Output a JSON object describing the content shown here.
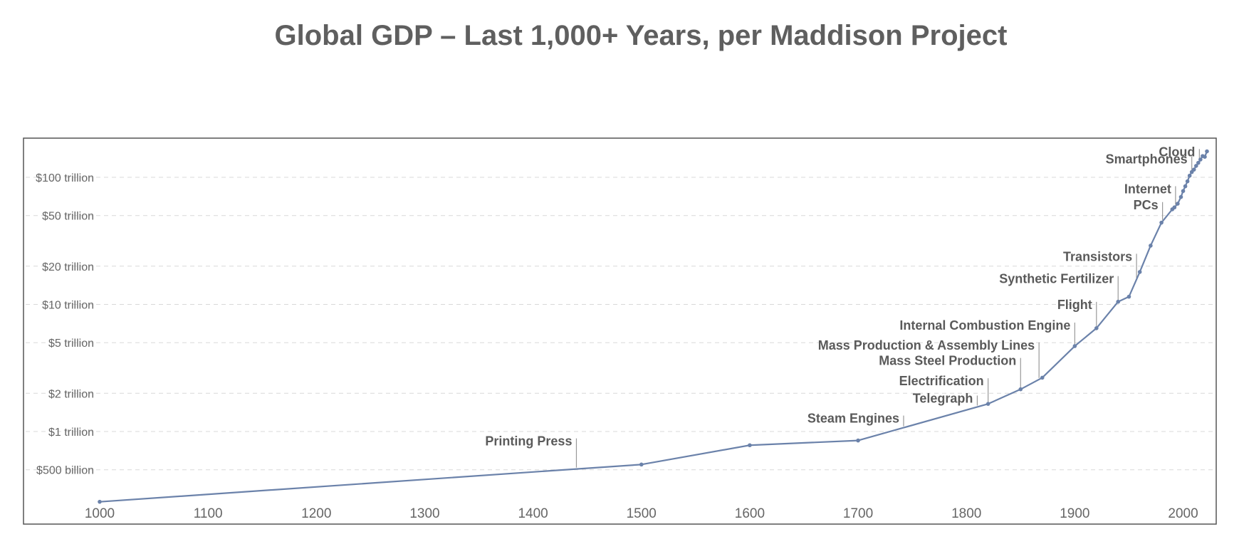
{
  "chart_data": {
    "type": "line",
    "title": "Global GDP – Last 1,000+ Years, per Maddison Project",
    "xlabel": "",
    "ylabel": "",
    "x_scale": "linear",
    "y_scale": "log",
    "xlim": [
      1000,
      2022
    ],
    "ylim": [
      0.27,
      170
    ],
    "grid": true,
    "legend": "none",
    "x_ticks": [
      1000,
      1100,
      1200,
      1300,
      1400,
      1500,
      1600,
      1700,
      1800,
      1900,
      2000
    ],
    "y_ticks": [
      {
        "value": 0.5,
        "label": "$500 billion"
      },
      {
        "value": 1,
        "label": "$1 trillion"
      },
      {
        "value": 2,
        "label": "$2 trillion"
      },
      {
        "value": 5,
        "label": "$5 trillion"
      },
      {
        "value": 10,
        "label": "$10 trillion"
      },
      {
        "value": 20,
        "label": "$20 trillion"
      },
      {
        "value": 50,
        "label": "$50 trillion"
      },
      {
        "value": 100,
        "label": "$100 trillion"
      }
    ],
    "series": [
      {
        "color": "#6b82aa",
        "x": [
          1000,
          1500,
          1600,
          1700,
          1820,
          1850,
          1870,
          1900,
          1920,
          1940,
          1950,
          1960,
          1970,
          1980,
          1990,
          1992,
          1995,
          1998,
          2000,
          2002,
          2004,
          2006,
          2008,
          2010,
          2012,
          2014,
          2016,
          2018,
          2020,
          2022
        ],
        "y": [
          0.28,
          0.55,
          0.78,
          0.85,
          1.65,
          2.15,
          2.65,
          4.7,
          6.5,
          10.5,
          11.5,
          18.0,
          29.0,
          44.0,
          56.0,
          58.0,
          62.0,
          70.0,
          78.0,
          85.0,
          93.0,
          103.0,
          110.0,
          115.0,
          123.0,
          130.0,
          138.0,
          147.0,
          145.0,
          160.0
        ]
      }
    ],
    "annotations": [
      {
        "label": "Printing Press",
        "x": 1440
      },
      {
        "label": "Steam Engines",
        "x": 1742
      },
      {
        "label": "Telegraph",
        "x": 1810
      },
      {
        "label": "Electrification",
        "x": 1820
      },
      {
        "label": "Mass Steel Production",
        "x": 1850
      },
      {
        "label": "Mass Production & Assembly Lines",
        "x": 1867
      },
      {
        "label": "Internal Combustion Engine",
        "x": 1900
      },
      {
        "label": "Flight",
        "x": 1920
      },
      {
        "label": "Synthetic Fertilizer",
        "x": 1940
      },
      {
        "label": "Transistors",
        "x": 1957
      },
      {
        "label": "PCs",
        "x": 1981
      },
      {
        "label": "Internet",
        "x": 1993
      },
      {
        "label": "Smartphones",
        "x": 2008
      },
      {
        "label": "Cloud",
        "x": 2015
      }
    ]
  }
}
